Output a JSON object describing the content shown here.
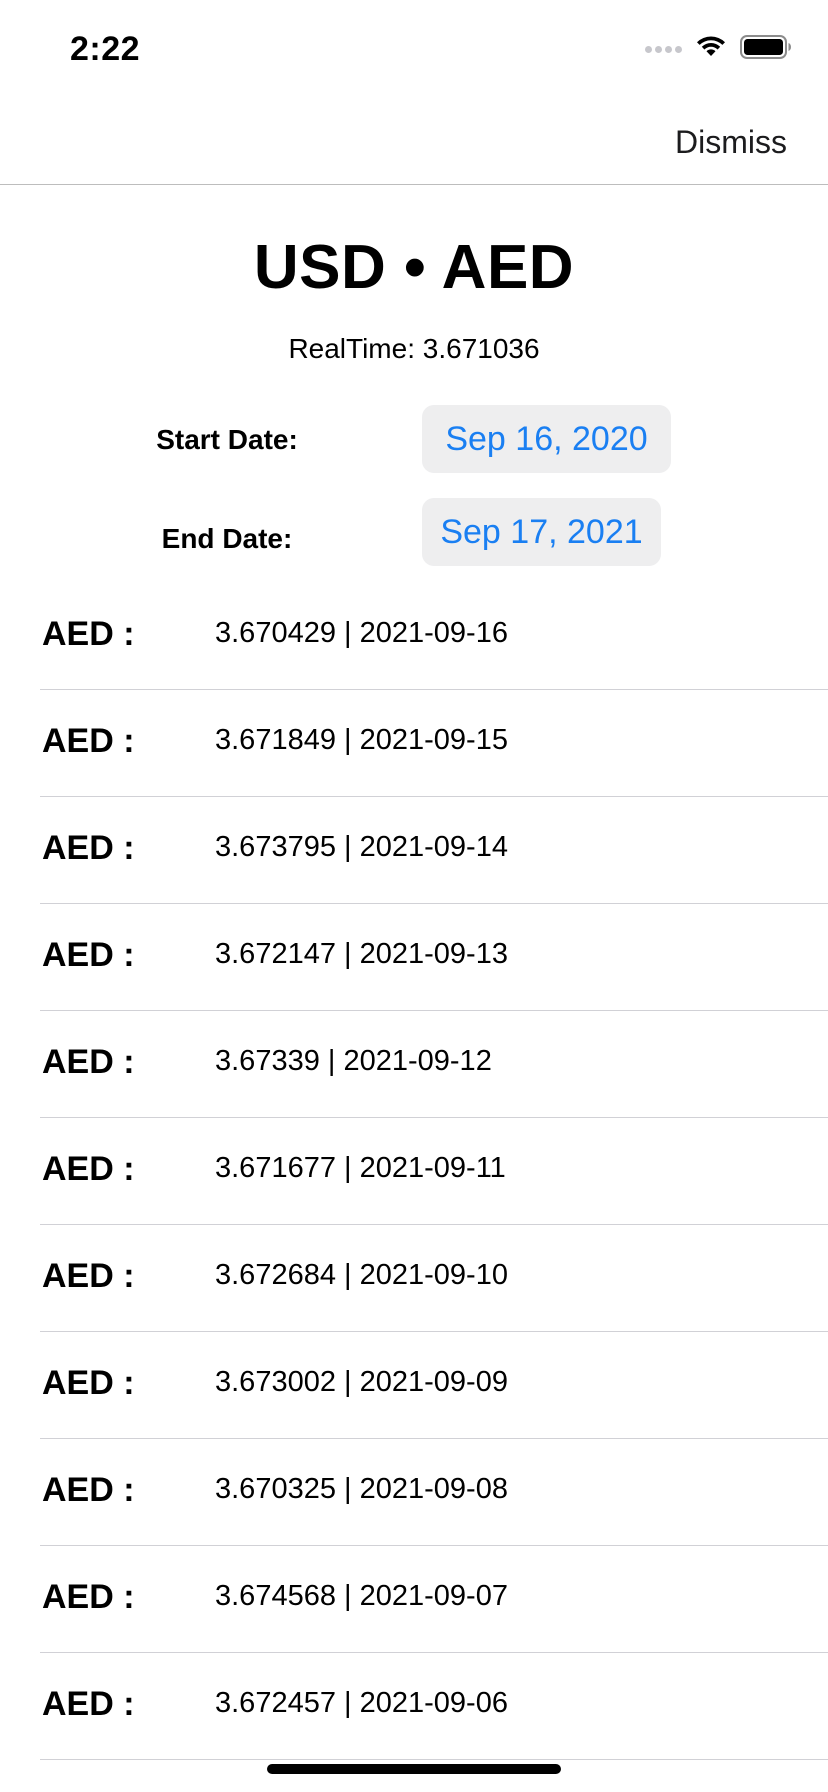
{
  "status_bar": {
    "time": "2:22",
    "icons": [
      "cellular-signal-icon",
      "wifi-icon",
      "battery-icon"
    ]
  },
  "nav": {
    "dismiss_label": "Dismiss"
  },
  "header": {
    "title": "USD • AED",
    "realtime": "RealTime: 3.671036"
  },
  "dates": {
    "start_label": "Start Date:",
    "start_value": "Sep 16, 2020",
    "end_label": "End Date:",
    "end_value": "Sep 17, 2021"
  },
  "rates": [
    {
      "currency": "AED :",
      "value": "3.670429 | 2021-09-16"
    },
    {
      "currency": "AED :",
      "value": "3.671849 | 2021-09-15"
    },
    {
      "currency": "AED :",
      "value": "3.673795 | 2021-09-14"
    },
    {
      "currency": "AED :",
      "value": "3.672147 | 2021-09-13"
    },
    {
      "currency": "AED :",
      "value": "3.67339 | 2021-09-12"
    },
    {
      "currency": "AED :",
      "value": "3.671677 | 2021-09-11"
    },
    {
      "currency": "AED :",
      "value": "3.672684 | 2021-09-10"
    },
    {
      "currency": "AED :",
      "value": "3.673002 | 2021-09-09"
    },
    {
      "currency": "AED :",
      "value": "3.670325 | 2021-09-08"
    },
    {
      "currency": "AED :",
      "value": "3.674568 | 2021-09-07"
    },
    {
      "currency": "AED :",
      "value": "3.672457 | 2021-09-06"
    }
  ],
  "colors": {
    "accent": "#1a7ff2",
    "pill_background": "#eeeeef",
    "separator": "#d1d1d6"
  }
}
